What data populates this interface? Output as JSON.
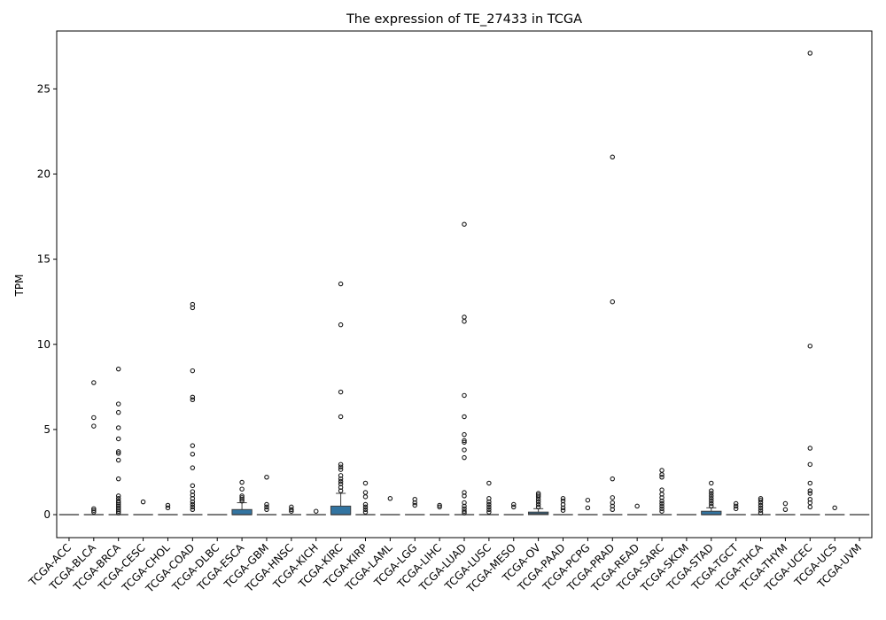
{
  "chart_data": {
    "type": "box",
    "title": "The expression of TE_27433 in TCGA",
    "xlabel": "",
    "ylabel": "TPM",
    "ylim": [
      -1.35,
      28.4
    ],
    "yticks": [
      0,
      5,
      10,
      15,
      20,
      25
    ],
    "grid": false,
    "box_color": "#3274a1",
    "categories": [
      "TCGA-ACC",
      "TCGA-BLCA",
      "TCGA-BRCA",
      "TCGA-CESC",
      "TCGA-CHOL",
      "TCGA-COAD",
      "TCGA-DLBC",
      "TCGA-ESCA",
      "TCGA-GBM",
      "TCGA-HNSC",
      "TCGA-KICH",
      "TCGA-KIRC",
      "TCGA-KIRP",
      "TCGA-LAML",
      "TCGA-LGG",
      "TCGA-LIHC",
      "TCGA-LUAD",
      "TCGA-LUSC",
      "TCGA-MESO",
      "TCGA-OV",
      "TCGA-PAAD",
      "TCGA-PCPG",
      "TCGA-PRAD",
      "TCGA-READ",
      "TCGA-SARC",
      "TCGA-SKCM",
      "TCGA-STAD",
      "TCGA-TGCT",
      "TCGA-THCA",
      "TCGA-THYM",
      "TCGA-UCEC",
      "TCGA-UCS",
      "TCGA-UVM"
    ],
    "boxes": [
      {
        "q1": 0,
        "median": 0,
        "q3": 0,
        "whisker_low": 0,
        "whisker_high": 0,
        "outliers": []
      },
      {
        "q1": 0,
        "median": 0,
        "q3": 0,
        "whisker_low": 0,
        "whisker_high": 0,
        "outliers": [
          0.15,
          0.25,
          0.35,
          5.2,
          5.7,
          7.75
        ]
      },
      {
        "q1": 0,
        "median": 0,
        "q3": 0,
        "whisker_low": 0,
        "whisker_high": 0,
        "outliers": [
          0.1,
          0.2,
          0.3,
          0.4,
          0.5,
          0.6,
          0.7,
          0.8,
          0.95,
          1.1,
          2.1,
          3.2,
          3.6,
          3.7,
          4.45,
          5.1,
          6.0,
          6.5,
          8.55
        ]
      },
      {
        "q1": 0,
        "median": 0,
        "q3": 0,
        "whisker_low": 0,
        "whisker_high": 0,
        "outliers": [
          0.75
        ]
      },
      {
        "q1": 0,
        "median": 0,
        "q3": 0,
        "whisker_low": 0,
        "whisker_high": 0,
        "outliers": [
          0.4,
          0.55
        ]
      },
      {
        "q1": 0,
        "median": 0,
        "q3": 0,
        "whisker_low": 0,
        "whisker_high": 0,
        "outliers": [
          0.3,
          0.45,
          0.6,
          0.75,
          0.95,
          1.15,
          1.35,
          1.7,
          2.75,
          3.55,
          4.05,
          6.75,
          6.9,
          8.45,
          12.15,
          12.35
        ]
      },
      {
        "q1": 0,
        "median": 0,
        "q3": 0,
        "whisker_low": 0,
        "whisker_high": 0,
        "outliers": []
      },
      {
        "q1": 0,
        "median": 0,
        "q3": 0.3,
        "whisker_low": 0,
        "whisker_high": 0.7,
        "outliers": [
          0.8,
          0.9,
          1.0,
          1.1,
          1.5,
          1.9
        ]
      },
      {
        "q1": 0,
        "median": 0,
        "q3": 0,
        "whisker_low": 0,
        "whisker_high": 0,
        "outliers": [
          0.3,
          0.45,
          0.6,
          2.2
        ]
      },
      {
        "q1": 0,
        "median": 0,
        "q3": 0,
        "whisker_low": 0,
        "whisker_high": 0,
        "outliers": [
          0.2,
          0.3,
          0.45
        ]
      },
      {
        "q1": 0,
        "median": 0,
        "q3": 0,
        "whisker_low": 0,
        "whisker_high": 0,
        "outliers": [
          0.2
        ]
      },
      {
        "q1": 0,
        "median": 0,
        "q3": 0.5,
        "whisker_low": 0,
        "whisker_high": 1.25,
        "outliers": [
          1.4,
          1.6,
          1.8,
          1.95,
          2.1,
          2.3,
          2.65,
          2.8,
          2.95,
          5.75,
          7.2,
          11.15,
          13.55
        ]
      },
      {
        "q1": 0,
        "median": 0,
        "q3": 0,
        "whisker_low": 0,
        "whisker_high": 0,
        "outliers": [
          0.15,
          0.3,
          0.45,
          0.6,
          1.05,
          1.3,
          1.85
        ]
      },
      {
        "q1": 0,
        "median": 0,
        "q3": 0,
        "whisker_low": 0,
        "whisker_high": 0,
        "outliers": [
          0.95
        ]
      },
      {
        "q1": 0,
        "median": 0,
        "q3": 0,
        "whisker_low": 0,
        "whisker_high": 0,
        "outliers": [
          0.55,
          0.7,
          0.9
        ]
      },
      {
        "q1": 0,
        "median": 0,
        "q3": 0,
        "whisker_low": 0,
        "whisker_high": 0,
        "outliers": [
          0.45,
          0.55
        ]
      },
      {
        "q1": 0,
        "median": 0,
        "q3": 0,
        "whisker_low": 0,
        "whisker_high": 0,
        "outliers": [
          0.1,
          0.2,
          0.35,
          0.5,
          0.7,
          1.1,
          1.3,
          3.35,
          3.8,
          4.25,
          4.35,
          4.7,
          5.75,
          7.0,
          11.35,
          11.6,
          17.05
        ]
      },
      {
        "q1": 0,
        "median": 0,
        "q3": 0,
        "whisker_low": 0,
        "whisker_high": 0,
        "outliers": [
          0.15,
          0.3,
          0.45,
          0.6,
          0.75,
          0.95,
          1.85
        ]
      },
      {
        "q1": 0,
        "median": 0,
        "q3": 0,
        "whisker_low": 0,
        "whisker_high": 0,
        "outliers": [
          0.45,
          0.6
        ]
      },
      {
        "q1": 0,
        "median": 0.05,
        "q3": 0.15,
        "whisker_low": 0,
        "whisker_high": 0.35,
        "outliers": [
          0.45,
          0.6,
          0.75,
          0.9,
          1.05,
          1.15,
          1.25
        ]
      },
      {
        "q1": 0,
        "median": 0,
        "q3": 0,
        "whisker_low": 0,
        "whisker_high": 0,
        "outliers": [
          0.25,
          0.4,
          0.6,
          0.8,
          0.95
        ]
      },
      {
        "q1": 0,
        "median": 0,
        "q3": 0,
        "whisker_low": 0,
        "whisker_high": 0,
        "outliers": [
          0.4,
          0.85
        ]
      },
      {
        "q1": 0,
        "median": 0,
        "q3": 0,
        "whisker_low": 0,
        "whisker_high": 0,
        "outliers": [
          0.3,
          0.5,
          0.7,
          1.0,
          2.1,
          12.5,
          21.0
        ]
      },
      {
        "q1": 0,
        "median": 0,
        "q3": 0,
        "whisker_low": 0,
        "whisker_high": 0,
        "outliers": [
          0.5
        ]
      },
      {
        "q1": 0,
        "median": 0,
        "q3": 0,
        "whisker_low": 0,
        "whisker_high": 0,
        "outliers": [
          0.2,
          0.35,
          0.5,
          0.65,
          0.8,
          1.0,
          1.2,
          1.45,
          2.2,
          2.35,
          2.6
        ]
      },
      {
        "q1": 0,
        "median": 0,
        "q3": 0,
        "whisker_low": 0,
        "whisker_high": 0,
        "outliers": []
      },
      {
        "q1": 0,
        "median": 0,
        "q3": 0.2,
        "whisker_low": 0,
        "whisker_high": 0.4,
        "outliers": [
          0.5,
          0.65,
          0.8,
          0.95,
          1.1,
          1.25,
          1.4,
          1.85
        ]
      },
      {
        "q1": 0,
        "median": 0,
        "q3": 0,
        "whisker_low": 0,
        "whisker_high": 0,
        "outliers": [
          0.35,
          0.5,
          0.65
        ]
      },
      {
        "q1": 0,
        "median": 0,
        "q3": 0,
        "whisker_low": 0,
        "whisker_high": 0,
        "outliers": [
          0.1,
          0.25,
          0.4,
          0.55,
          0.7,
          0.85,
          0.95
        ]
      },
      {
        "q1": 0,
        "median": 0,
        "q3": 0,
        "whisker_low": 0,
        "whisker_high": 0,
        "outliers": [
          0.3,
          0.65
        ]
      },
      {
        "q1": 0,
        "median": 0,
        "q3": 0,
        "whisker_low": 0,
        "whisker_high": 0,
        "outliers": [
          0.45,
          0.7,
          0.9,
          1.25,
          1.4,
          1.85,
          2.95,
          3.9,
          9.9,
          27.1
        ]
      },
      {
        "q1": 0,
        "median": 0,
        "q3": 0,
        "whisker_low": 0,
        "whisker_high": 0,
        "outliers": [
          0.4
        ]
      },
      {
        "q1": 0,
        "median": 0,
        "q3": 0,
        "whisker_low": 0,
        "whisker_high": 0,
        "outliers": []
      }
    ]
  }
}
